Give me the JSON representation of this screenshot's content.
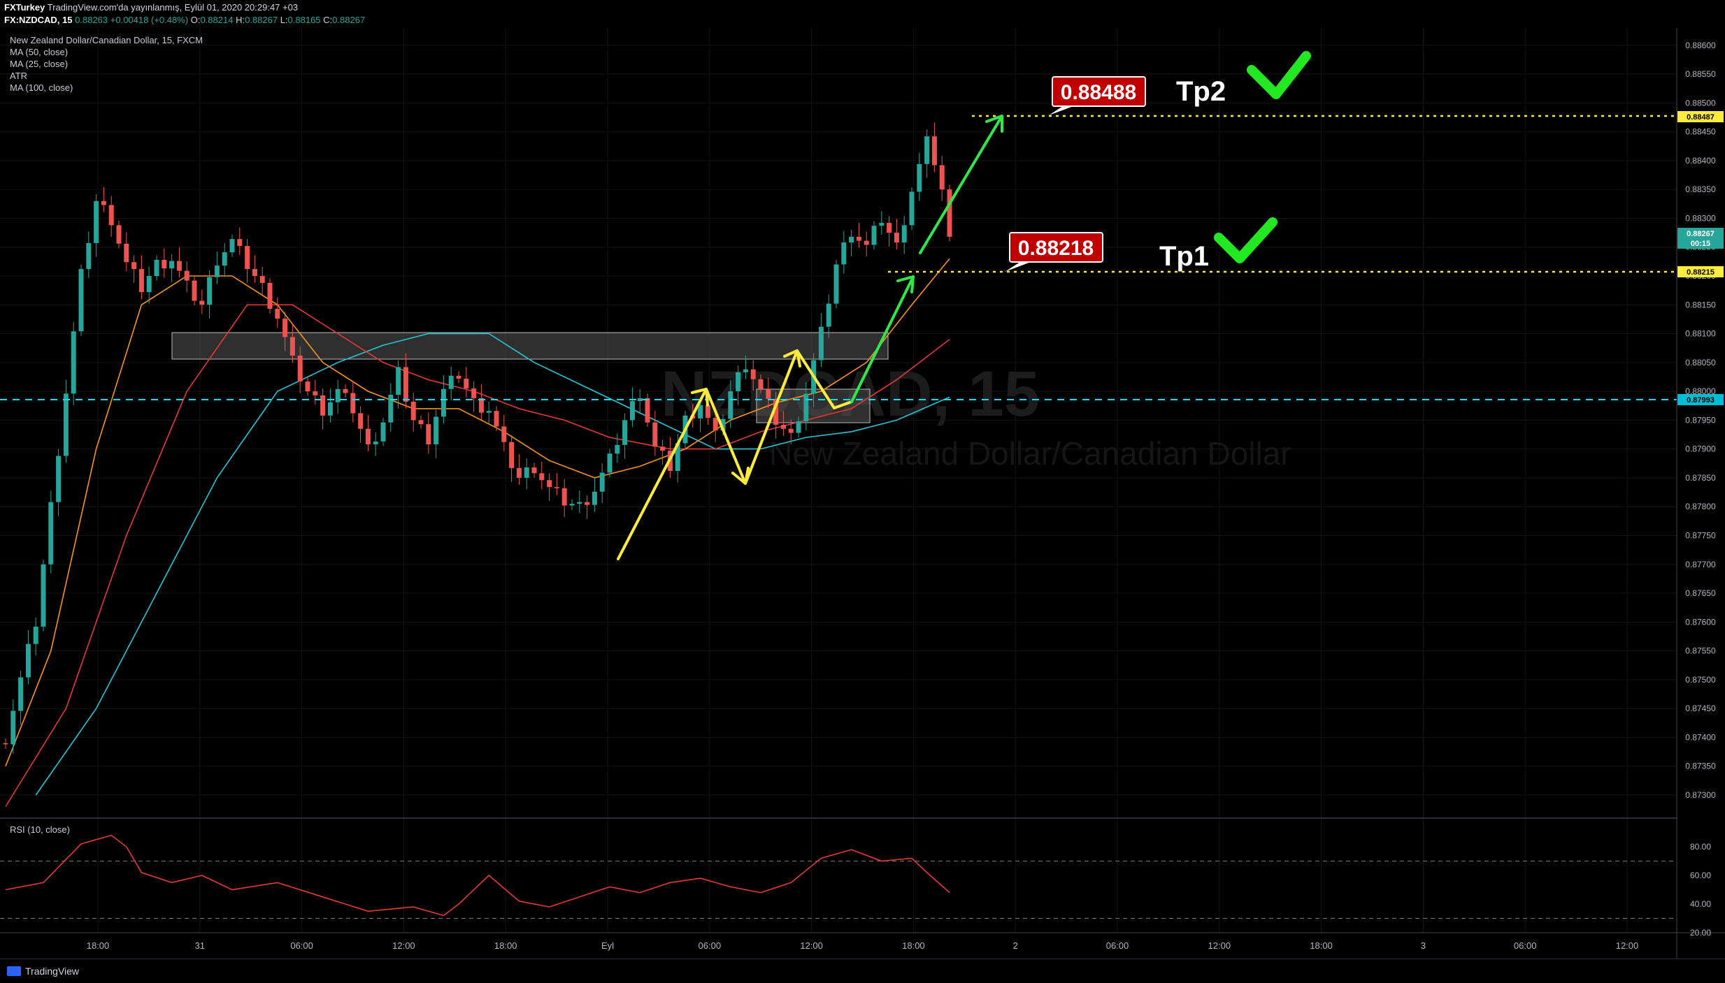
{
  "header": {
    "line1_user": "FXTurkey",
    "line1_rest": "TradingView.com'da yayınlanmış, Eylül 01, 2020 20:29:47 +03",
    "symbol": "FX:NZDCAD, 15",
    "price": "0.88263",
    "change": "+0.00418 (+0.48%)",
    "o_label": "O:",
    "o_val": "0.88214",
    "h_label": "H:",
    "h_val": "0.88267",
    "l_label": "L:",
    "l_val": "0.88165",
    "c_label": "C:",
    "c_val": "0.88267"
  },
  "legend": {
    "title": "New Zealand Dollar/Canadian Dollar, 15, FXCM",
    "ma50": "MA (50, close)",
    "ma25": "MA (25, close)",
    "atr": "ATR",
    "ma100": "MA (100, close)",
    "rsi": "RSI (10, close)"
  },
  "watermark": {
    "symbol": "NZDCAD, 15",
    "name": "New Zealand Dollar/Canadian Dollar"
  },
  "annotations": {
    "callout_tp2": "0.88488",
    "callout_tp1": "0.88218",
    "tp2": "Tp2",
    "tp1": "Tp1",
    "tag_tp2": "0.88487",
    "tag_last": "0.88267",
    "tag_countdown": "00:15",
    "tag_tp1": "0.88215",
    "tag_cyan": "0.87993"
  },
  "colors": {
    "bull": "#26a69a",
    "bear": "#ef5350",
    "ma25": "#f7931e",
    "ma50": "#e53935",
    "ma100": "#26c6da",
    "yellow": "#ffeb3b",
    "green": "#2ee84a",
    "cyan": "#00e5ff",
    "callout": "#c00000",
    "rsi": "#e53935"
  },
  "footer": {
    "brand": "TradingView"
  },
  "chart_data": {
    "type": "candlestick",
    "symbol": "NZDCAD",
    "timeframe": "15",
    "y_ticks": [
      "0.88600",
      "0.88550",
      "0.88500",
      "0.88450",
      "0.88400",
      "0.88350",
      "0.88300",
      "0.88250",
      "0.88200",
      "0.88150",
      "0.88100",
      "0.88050",
      "0.88000",
      "0.87950",
      "0.87900",
      "0.87850",
      "0.87800",
      "0.87750",
      "0.87700",
      "0.87650",
      "0.87600",
      "0.87550",
      "0.87500",
      "0.87450",
      "0.87400",
      "0.87350",
      "0.87300"
    ],
    "x_ticks": [
      "18:00",
      "31",
      "06:00",
      "12:00",
      "18:00",
      "Eyl",
      "06:00",
      "12:00",
      "18:00",
      "2",
      "06:00",
      "12:00",
      "18:00",
      "3",
      "06:00",
      "12:00"
    ],
    "rsi_ticks": [
      "80.00",
      "60.00",
      "40.00",
      "20.00"
    ],
    "rsi_levels": [
      70,
      30
    ],
    "ylim": [
      0.8726,
      0.8863
    ],
    "rsi_ylim": [
      20,
      100
    ],
    "close_path": [
      [
        0,
        0.874
      ],
      [
        4,
        0.876
      ],
      [
        8,
        0.88
      ],
      [
        10,
        0.882
      ],
      [
        12,
        0.8833
      ],
      [
        14,
        0.883
      ],
      [
        16,
        0.8822
      ],
      [
        18,
        0.8818
      ],
      [
        20,
        0.8822
      ],
      [
        22,
        0.8823
      ],
      [
        24,
        0.8818
      ],
      [
        26,
        0.8815
      ],
      [
        28,
        0.8823
      ],
      [
        30,
        0.8826
      ],
      [
        32,
        0.8822
      ],
      [
        34,
        0.8818
      ],
      [
        36,
        0.8813
      ],
      [
        38,
        0.8805
      ],
      [
        40,
        0.88
      ],
      [
        42,
        0.8797
      ],
      [
        44,
        0.88
      ],
      [
        46,
        0.8797
      ],
      [
        48,
        0.879
      ],
      [
        50,
        0.8795
      ],
      [
        52,
        0.8803
      ],
      [
        54,
        0.8795
      ],
      [
        56,
        0.8792
      ],
      [
        58,
        0.88
      ],
      [
        60,
        0.8803
      ],
      [
        62,
        0.8798
      ],
      [
        64,
        0.8797
      ],
      [
        66,
        0.879
      ],
      [
        68,
        0.8785
      ],
      [
        70,
        0.8787
      ],
      [
        72,
        0.8783
      ],
      [
        74,
        0.8781
      ],
      [
        76,
        0.878
      ],
      [
        78,
        0.8783
      ],
      [
        80,
        0.8788
      ],
      [
        82,
        0.8795
      ],
      [
        84,
        0.88
      ],
      [
        86,
        0.879
      ],
      [
        88,
        0.8787
      ],
      [
        90,
        0.8795
      ],
      [
        92,
        0.8798
      ],
      [
        94,
        0.8792
      ],
      [
        96,
        0.88
      ],
      [
        98,
        0.8805
      ],
      [
        100,
        0.88
      ],
      [
        102,
        0.8795
      ],
      [
        104,
        0.8792
      ],
      [
        106,
        0.88
      ],
      [
        108,
        0.881
      ],
      [
        110,
        0.8822
      ],
      [
        112,
        0.8828
      ],
      [
        114,
        0.8825
      ],
      [
        116,
        0.883
      ],
      [
        118,
        0.8825
      ],
      [
        120,
        0.8835
      ],
      [
        122,
        0.8843
      ],
      [
        123,
        0.884
      ],
      [
        124,
        0.8835
      ],
      [
        125,
        0.8826
      ]
    ],
    "ma25": [
      [
        0,
        0.8735
      ],
      [
        6,
        0.8755
      ],
      [
        12,
        0.879
      ],
      [
        18,
        0.8815
      ],
      [
        24,
        0.882
      ],
      [
        30,
        0.882
      ],
      [
        36,
        0.8815
      ],
      [
        42,
        0.8805
      ],
      [
        48,
        0.88
      ],
      [
        54,
        0.8797
      ],
      [
        60,
        0.8797
      ],
      [
        66,
        0.8793
      ],
      [
        72,
        0.8788
      ],
      [
        78,
        0.8785
      ],
      [
        84,
        0.8787
      ],
      [
        90,
        0.879
      ],
      [
        96,
        0.8795
      ],
      [
        102,
        0.8798
      ],
      [
        108,
        0.88
      ],
      [
        114,
        0.8805
      ],
      [
        120,
        0.8815
      ],
      [
        125,
        0.8823
      ]
    ],
    "ma50": [
      [
        0,
        0.8728
      ],
      [
        8,
        0.8745
      ],
      [
        16,
        0.8775
      ],
      [
        24,
        0.88
      ],
      [
        32,
        0.8815
      ],
      [
        38,
        0.8815
      ],
      [
        44,
        0.881
      ],
      [
        50,
        0.8805
      ],
      [
        56,
        0.8802
      ],
      [
        62,
        0.88
      ],
      [
        68,
        0.8797
      ],
      [
        74,
        0.8795
      ],
      [
        80,
        0.8792
      ],
      [
        88,
        0.879
      ],
      [
        94,
        0.879
      ],
      [
        100,
        0.8793
      ],
      [
        106,
        0.8795
      ],
      [
        112,
        0.8797
      ],
      [
        118,
        0.8802
      ],
      [
        125,
        0.8809
      ]
    ],
    "ma100": [
      [
        4,
        0.873
      ],
      [
        12,
        0.8745
      ],
      [
        20,
        0.8765
      ],
      [
        28,
        0.8785
      ],
      [
        36,
        0.88
      ],
      [
        44,
        0.8805
      ],
      [
        50,
        0.8808
      ],
      [
        56,
        0.881
      ],
      [
        64,
        0.881
      ],
      [
        70,
        0.8805
      ],
      [
        78,
        0.88
      ],
      [
        86,
        0.8795
      ],
      [
        94,
        0.879
      ],
      [
        100,
        0.879
      ],
      [
        106,
        0.8792
      ],
      [
        112,
        0.8793
      ],
      [
        118,
        0.8795
      ],
      [
        125,
        0.8799
      ]
    ],
    "rsi": [
      [
        0,
        50
      ],
      [
        5,
        55
      ],
      [
        10,
        82
      ],
      [
        14,
        88
      ],
      [
        16,
        80
      ],
      [
        18,
        62
      ],
      [
        22,
        55
      ],
      [
        26,
        60
      ],
      [
        30,
        50
      ],
      [
        36,
        55
      ],
      [
        42,
        45
      ],
      [
        48,
        35
      ],
      [
        54,
        38
      ],
      [
        58,
        32
      ],
      [
        60,
        40
      ],
      [
        64,
        60
      ],
      [
        68,
        42
      ],
      [
        72,
        38
      ],
      [
        76,
        45
      ],
      [
        80,
        52
      ],
      [
        84,
        48
      ],
      [
        88,
        55
      ],
      [
        92,
        58
      ],
      [
        96,
        52
      ],
      [
        100,
        48
      ],
      [
        104,
        55
      ],
      [
        108,
        72
      ],
      [
        112,
        78
      ],
      [
        116,
        70
      ],
      [
        120,
        72
      ],
      [
        122,
        62
      ],
      [
        125,
        48
      ]
    ]
  }
}
